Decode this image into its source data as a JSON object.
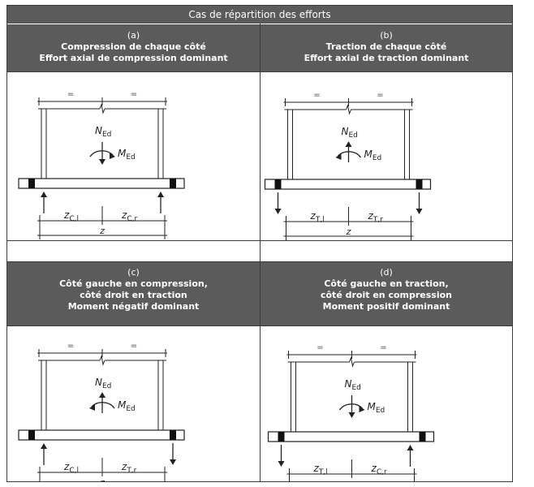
{
  "title": "Cas de répartition des efforts",
  "cases": [
    {
      "label": "(a)",
      "lines": [
        "Compression de chaque côté",
        "Effort axial de compression dominant"
      ],
      "left_arrow": "up",
      "right_arrow": "up",
      "moment": "cw",
      "z_left": "C,l",
      "z_right": "C,r"
    },
    {
      "label": "(b)",
      "lines": [
        "Traction de chaque côté",
        "Effort axial de traction dominant"
      ],
      "left_arrow": "down",
      "right_arrow": "down",
      "moment": "ccw",
      "z_left": "T,l",
      "z_right": "T,r"
    },
    {
      "label": "(c)",
      "lines": [
        "Côté gauche en compression,",
        "côté droit en traction",
        "Moment négatif dominant"
      ],
      "left_arrow": "up",
      "right_arrow": "down",
      "moment": "ccw",
      "z_left": "C,l",
      "z_right": "T,r"
    },
    {
      "label": "(d)",
      "lines": [
        "Côté gauche en traction,",
        "côté droit en compression",
        "Moment positif dominant"
      ],
      "left_arrow": "down",
      "right_arrow": "up",
      "moment": "cw",
      "z_left": "T,l",
      "z_right": "C,r"
    }
  ],
  "labels": {
    "equal": "=",
    "n_main": "N",
    "n_sub": "Ed",
    "m_main": "M",
    "m_sub": "Ed",
    "z_main": "z",
    "z": "z"
  }
}
